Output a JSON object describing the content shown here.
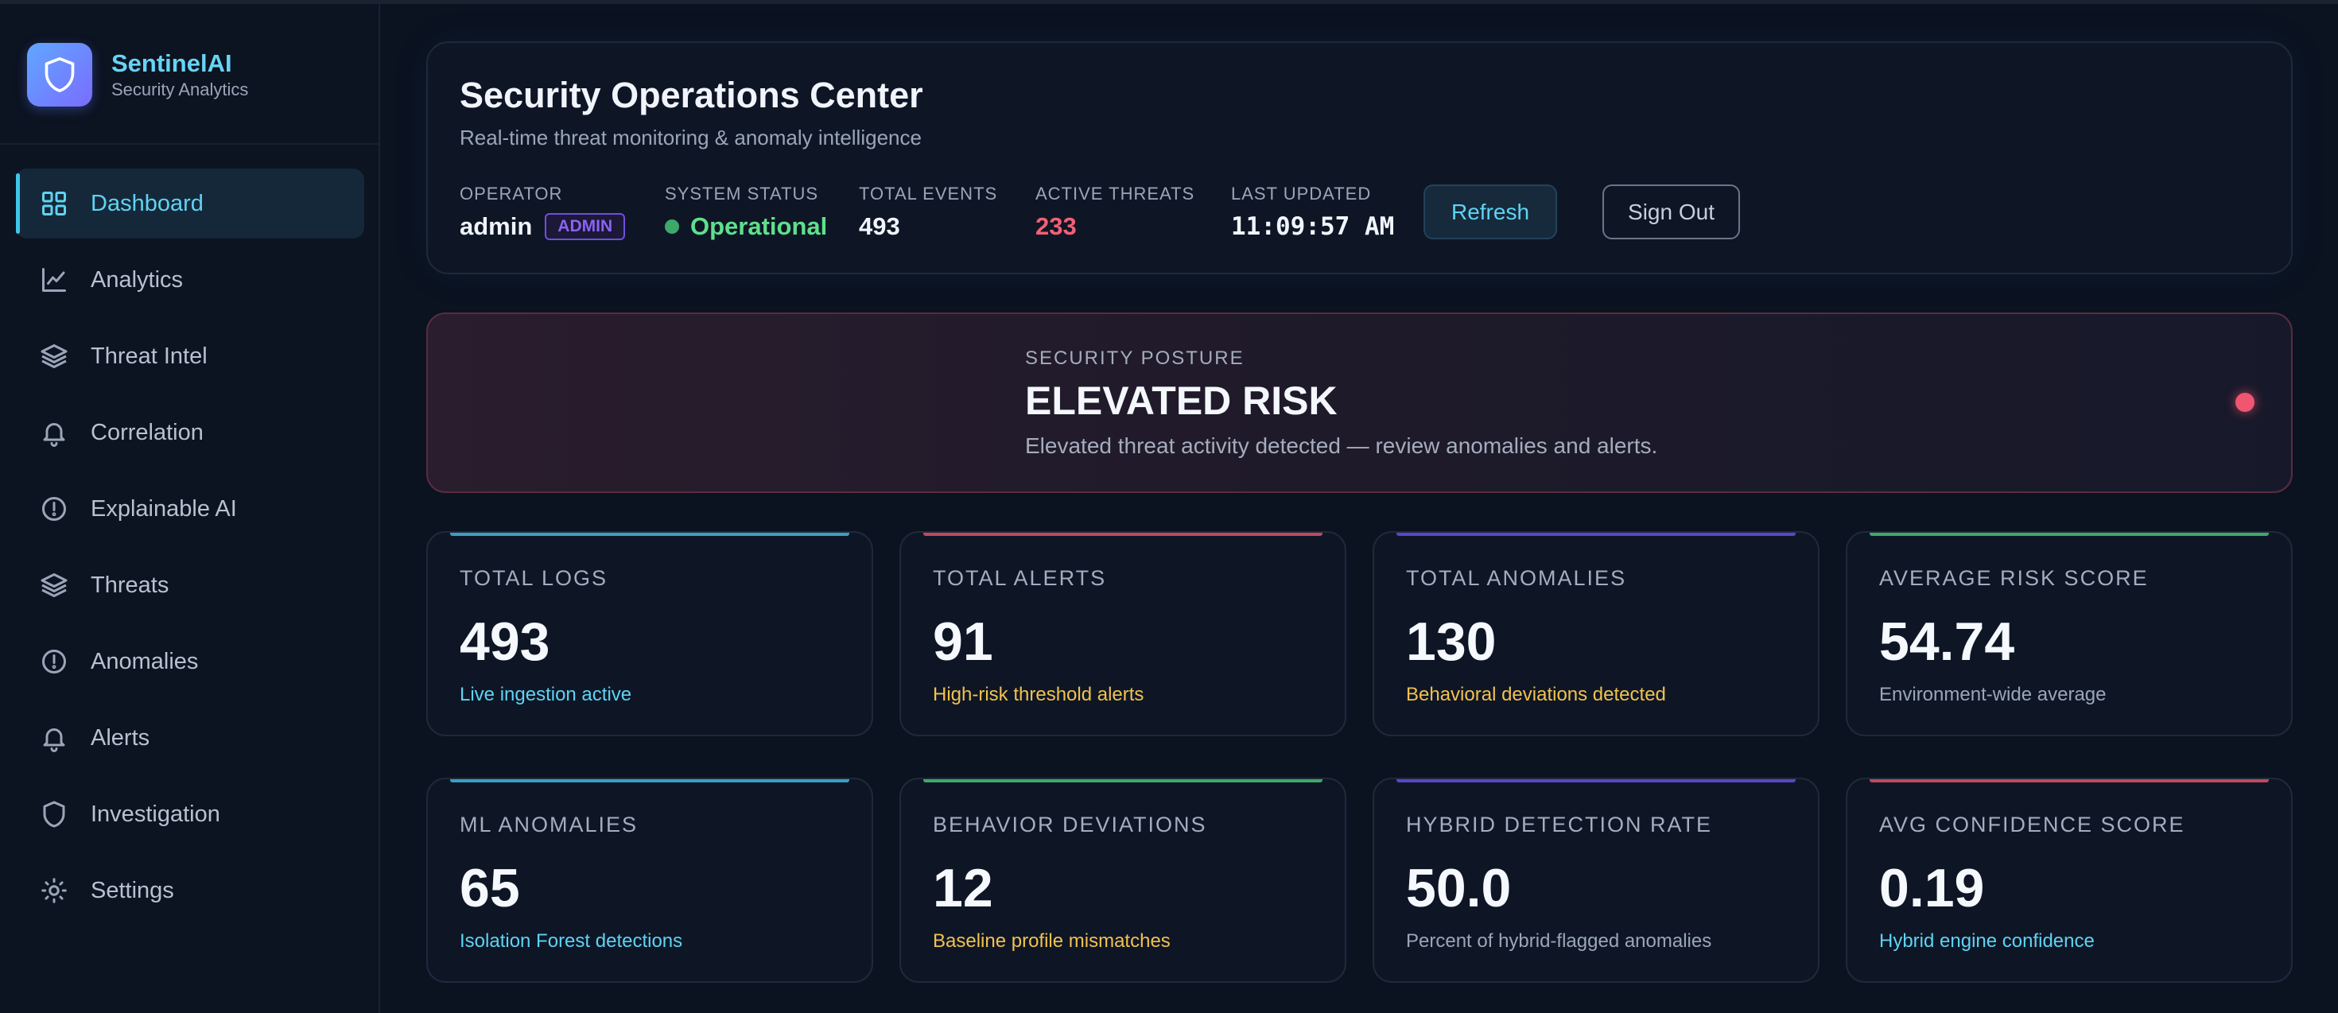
{
  "brand": {
    "name": "SentinelAI",
    "subtitle": "Security Analytics",
    "accent": "#67d4f5"
  },
  "sidebar": {
    "items": [
      {
        "label": "Dashboard",
        "icon": "grid-icon",
        "active": true
      },
      {
        "label": "Analytics",
        "icon": "line-chart-icon",
        "active": false
      },
      {
        "label": "Threat Intel",
        "icon": "layers-icon",
        "active": false
      },
      {
        "label": "Correlation",
        "icon": "bell-icon",
        "active": false
      },
      {
        "label": "Explainable AI",
        "icon": "alert-circle-icon",
        "active": false
      },
      {
        "label": "Threats",
        "icon": "layers-icon",
        "active": false
      },
      {
        "label": "Anomalies",
        "icon": "alert-circle-icon",
        "active": false
      },
      {
        "label": "Alerts",
        "icon": "bell-icon",
        "active": false
      },
      {
        "label": "Investigation",
        "icon": "shield-icon",
        "active": false
      },
      {
        "label": "Settings",
        "icon": "sun-icon",
        "active": false
      }
    ]
  },
  "header": {
    "title": "Security Operations Center",
    "subtitle": "Real-time threat monitoring & anomaly intelligence",
    "operator": {
      "label": "OPERATOR",
      "value": "admin",
      "badge": "ADMIN"
    },
    "system_status": {
      "label": "SYSTEM STATUS",
      "value": "Operational",
      "color": "#5fe08c"
    },
    "total_events": {
      "label": "TOTAL EVENTS",
      "value": "493"
    },
    "active_threats": {
      "label": "ACTIVE THREATS",
      "value": "233",
      "color": "#f26075"
    },
    "last_updated": {
      "label": "LAST UPDATED",
      "value": "11:09:57 AM"
    },
    "refresh_label": "Refresh",
    "signout_label": "Sign Out"
  },
  "posture": {
    "label": "SECURITY POSTURE",
    "title": "ELEVATED RISK",
    "description": "Elevated threat activity detected — review anomalies and alerts.",
    "indicator_color": "#f0566f"
  },
  "kpis": [
    {
      "label": "TOTAL LOGS",
      "value": "493",
      "note": "Live ingestion active",
      "note_color": "#5fd3f2",
      "accent": "#3b9fc0"
    },
    {
      "label": "TOTAL ALERTS",
      "value": "91",
      "note": "High-risk threshold alerts",
      "note_color": "#f2c14e",
      "accent": "#c0485e"
    },
    {
      "label": "TOTAL ANOMALIES",
      "value": "130",
      "note": "Behavioral deviations detected",
      "note_color": "#f2c14e",
      "accent": "#5a46c8"
    },
    {
      "label": "AVERAGE RISK SCORE",
      "value": "54.74",
      "note": "Environment-wide average",
      "note_color": "#9aa6b8",
      "accent": "#3fa86a"
    },
    {
      "label": "ML ANOMALIES",
      "value": "65",
      "note": "Isolation Forest detections",
      "note_color": "#5fd3f2",
      "accent": "#3b9fc0"
    },
    {
      "label": "BEHAVIOR DEVIATIONS",
      "value": "12",
      "note": "Baseline profile mismatches",
      "note_color": "#f2c14e",
      "accent": "#3fa86a"
    },
    {
      "label": "HYBRID DETECTION RATE",
      "value": "50.0",
      "note": "Percent of hybrid-flagged anomalies",
      "note_color": "#9aa6b8",
      "accent": "#5a46c8"
    },
    {
      "label": "AVG CONFIDENCE SCORE",
      "value": "0.19",
      "note": "Hybrid engine confidence",
      "note_color": "#5fd3f2",
      "accent": "#c0485e"
    }
  ]
}
